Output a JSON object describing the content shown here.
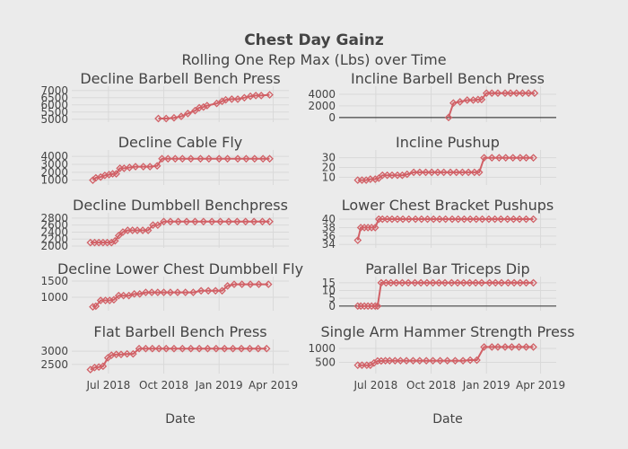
{
  "title": "Chest Day Gainz",
  "subtitle": "Rolling One Rep Max (Lbs) over Time",
  "colors": {
    "background": "#ebebeb",
    "grid": "#d9d9d9",
    "marker": "#d16066",
    "zero_line": "#444444",
    "text": "#444444"
  },
  "chart_data": [
    {
      "type": "line",
      "column": "left",
      "row": 0,
      "title": "Decline Barbell Bench Press",
      "ylim": [
        4800,
        7300
      ],
      "yticks": [
        5000,
        5500,
        6000,
        6500,
        7000
      ],
      "ytick_labels": [
        "5000",
        "5500",
        "6000",
        "6500",
        "7000"
      ],
      "series": [
        {
          "x": [
            "2018-09-22",
            "2018-10-05",
            "2018-10-18",
            "2018-10-30",
            "2018-11-10",
            "2018-11-22",
            "2018-11-29",
            "2018-12-06",
            "2018-12-12",
            "2018-12-28",
            "2019-01-06",
            "2019-01-12",
            "2019-01-22",
            "2019-02-01",
            "2019-02-12",
            "2019-02-22",
            "2019-03-03",
            "2019-03-12",
            "2019-03-26"
          ],
          "y": [
            5050,
            5050,
            5100,
            5200,
            5400,
            5600,
            5800,
            5850,
            5950,
            6100,
            6250,
            6350,
            6400,
            6400,
            6500,
            6600,
            6650,
            6650,
            6700
          ]
        }
      ]
    },
    {
      "type": "line",
      "column": "right",
      "row": 0,
      "title": "Incline Barbell Bench Press",
      "ylim": [
        -800,
        5400
      ],
      "yticks": [
        0,
        2000,
        4000
      ],
      "ytick_labels": [
        "0",
        "2000",
        "4000"
      ],
      "series": [
        {
          "x": [
            "2018-10-30",
            "2018-11-07",
            "2018-11-18",
            "2018-11-30",
            "2018-12-10",
            "2018-12-18",
            "2018-12-24",
            "2019-01-01",
            "2019-01-10",
            "2019-01-20",
            "2019-02-01",
            "2019-02-10",
            "2019-02-20",
            "2019-03-02",
            "2019-03-12",
            "2019-03-22"
          ],
          "y": [
            0,
            2500,
            2700,
            3000,
            3000,
            3100,
            3100,
            4200,
            4200,
            4200,
            4200,
            4200,
            4200,
            4200,
            4200,
            4200
          ]
        }
      ]
    },
    {
      "type": "line",
      "column": "left",
      "row": 1,
      "title": "Decline Cable Fly",
      "ylim": [
        400,
        4800
      ],
      "yticks": [
        1000,
        2000,
        3000,
        4000
      ],
      "ytick_labels": [
        "1000",
        "2000",
        "3000",
        "4000"
      ],
      "series": [
        {
          "x": [
            "2018-06-05",
            "2018-06-10",
            "2018-06-18",
            "2018-06-25",
            "2018-07-02",
            "2018-07-08",
            "2018-07-14",
            "2018-07-20",
            "2018-07-27",
            "2018-08-05",
            "2018-08-15",
            "2018-08-28",
            "2018-09-08",
            "2018-09-20",
            "2018-09-28",
            "2018-10-08",
            "2018-10-20",
            "2018-11-01",
            "2018-11-15",
            "2018-12-01",
            "2018-12-15",
            "2019-01-01",
            "2019-01-15",
            "2019-02-01",
            "2019-02-15",
            "2019-03-01",
            "2019-03-15",
            "2019-03-26"
          ],
          "y": [
            1000,
            1300,
            1400,
            1600,
            1700,
            1800,
            1800,
            2500,
            2500,
            2600,
            2700,
            2700,
            2700,
            2800,
            3700,
            3700,
            3700,
            3700,
            3700,
            3700,
            3700,
            3700,
            3700,
            3700,
            3700,
            3700,
            3700,
            3700
          ]
        }
      ]
    },
    {
      "type": "line",
      "column": "right",
      "row": 1,
      "title": "Incline Pushup",
      "ylim": [
        2,
        38
      ],
      "yticks": [
        10,
        20,
        30
      ],
      "ytick_labels": [
        "10",
        "20",
        "30"
      ],
      "series": [
        {
          "x": [
            "2018-06-01",
            "2018-06-08",
            "2018-06-15",
            "2018-06-22",
            "2018-06-30",
            "2018-07-06",
            "2018-07-12",
            "2018-07-20",
            "2018-07-28",
            "2018-08-06",
            "2018-08-14",
            "2018-08-22",
            "2018-09-02",
            "2018-09-12",
            "2018-09-22",
            "2018-10-02",
            "2018-10-12",
            "2018-10-22",
            "2018-11-02",
            "2018-11-12",
            "2018-11-22",
            "2018-12-02",
            "2018-12-12",
            "2018-12-20",
            "2018-12-28",
            "2019-01-10",
            "2019-01-22",
            "2019-02-02",
            "2019-02-14",
            "2019-02-26",
            "2019-03-08",
            "2019-03-20"
          ],
          "y": [
            7,
            7,
            7,
            8,
            8,
            9,
            12,
            12,
            12,
            12,
            12,
            13,
            15,
            15,
            15,
            15,
            15,
            15,
            15,
            15,
            15,
            15,
            15,
            15,
            30,
            30,
            30,
            30,
            30,
            30,
            30,
            30
          ]
        }
      ]
    },
    {
      "type": "line",
      "column": "left",
      "row": 2,
      "title": "Decline Dumbbell Benchpress",
      "ylim": [
        1950,
        2950
      ],
      "yticks": [
        2000,
        2200,
        2400,
        2600,
        2800
      ],
      "ytick_labels": [
        "2000",
        "2200",
        "2400",
        "2600",
        "2800"
      ],
      "series": [
        {
          "x": [
            "2018-06-01",
            "2018-06-08",
            "2018-06-15",
            "2018-06-22",
            "2018-06-29",
            "2018-07-06",
            "2018-07-12",
            "2018-07-18",
            "2018-07-25",
            "2018-08-02",
            "2018-08-10",
            "2018-08-18",
            "2018-08-27",
            "2018-09-05",
            "2018-09-13",
            "2018-09-21",
            "2018-10-01",
            "2018-10-12",
            "2018-10-25",
            "2018-11-08",
            "2018-11-22",
            "2018-12-06",
            "2018-12-20",
            "2019-01-03",
            "2019-01-17",
            "2019-01-31",
            "2019-02-14",
            "2019-02-28",
            "2019-03-14",
            "2019-03-26"
          ],
          "y": [
            2100,
            2100,
            2100,
            2100,
            2100,
            2100,
            2150,
            2300,
            2400,
            2450,
            2450,
            2450,
            2450,
            2450,
            2600,
            2600,
            2700,
            2700,
            2700,
            2700,
            2700,
            2700,
            2700,
            2700,
            2700,
            2700,
            2700,
            2700,
            2700,
            2700
          ]
        }
      ]
    },
    {
      "type": "line",
      "column": "right",
      "row": 2,
      "title": "Lower Chest Bracket Pushups",
      "ylim": [
        33.2,
        41.5
      ],
      "yticks": [
        34,
        36,
        38,
        40
      ],
      "ytick_labels": [
        "34",
        "36",
        "38",
        "40"
      ],
      "series": [
        {
          "x": [
            "2018-06-01",
            "2018-06-06",
            "2018-06-12",
            "2018-06-18",
            "2018-06-24",
            "2018-06-30",
            "2018-07-06",
            "2018-07-12",
            "2018-07-20",
            "2018-07-28",
            "2018-08-06",
            "2018-08-15",
            "2018-08-25",
            "2018-09-05",
            "2018-09-15",
            "2018-09-25",
            "2018-10-05",
            "2018-10-15",
            "2018-10-25",
            "2018-11-05",
            "2018-11-15",
            "2018-11-25",
            "2018-12-05",
            "2018-12-15",
            "2018-12-25",
            "2019-01-05",
            "2019-01-15",
            "2019-01-25",
            "2019-02-05",
            "2019-02-15",
            "2019-02-25",
            "2019-03-08",
            "2019-03-20"
          ],
          "y": [
            35,
            38,
            38,
            38,
            38,
            38,
            40,
            40,
            40,
            40,
            40,
            40,
            40,
            40,
            40,
            40,
            40,
            40,
            40,
            40,
            40,
            40,
            40,
            40,
            40,
            40,
            40,
            40,
            40,
            40,
            40,
            40,
            40
          ]
        }
      ]
    },
    {
      "type": "line",
      "column": "left",
      "row": 3,
      "title": "Decline Lower Chest Dumbbell Fly",
      "ylim": [
        580,
        1640
      ],
      "yticks": [
        1000,
        1500
      ],
      "ytick_labels": [
        "1000",
        "1500"
      ],
      "series": [
        {
          "x": [
            "2018-06-05",
            "2018-06-10",
            "2018-06-18",
            "2018-06-26",
            "2018-07-03",
            "2018-07-10",
            "2018-07-18",
            "2018-07-26",
            "2018-08-04",
            "2018-08-13",
            "2018-08-22",
            "2018-09-01",
            "2018-09-11",
            "2018-09-21",
            "2018-10-01",
            "2018-10-12",
            "2018-10-24",
            "2018-11-06",
            "2018-11-19",
            "2018-12-02",
            "2018-12-14",
            "2018-12-26",
            "2019-01-06",
            "2019-01-15",
            "2019-01-26",
            "2019-02-08",
            "2019-02-22",
            "2019-03-08",
            "2019-03-24"
          ],
          "y": [
            700,
            720,
            900,
            900,
            900,
            920,
            1050,
            1050,
            1050,
            1100,
            1100,
            1150,
            1150,
            1150,
            1150,
            1150,
            1150,
            1150,
            1150,
            1200,
            1200,
            1200,
            1200,
            1350,
            1400,
            1400,
            1400,
            1400,
            1400
          ]
        }
      ]
    },
    {
      "type": "line",
      "column": "right",
      "row": 3,
      "title": "Parallel Bar Triceps Dip",
      "ylim": [
        -3,
        19
      ],
      "yticks": [
        0,
        5,
        10,
        15
      ],
      "ytick_labels": [
        "0",
        "5",
        "10",
        "15"
      ],
      "series": [
        {
          "x": [
            "2018-06-01",
            "2018-06-06",
            "2018-06-12",
            "2018-06-18",
            "2018-06-24",
            "2018-06-30",
            "2018-07-04",
            "2018-07-10",
            "2018-07-18",
            "2018-07-26",
            "2018-08-04",
            "2018-08-14",
            "2018-08-24",
            "2018-09-04",
            "2018-09-14",
            "2018-09-24",
            "2018-10-04",
            "2018-10-14",
            "2018-10-24",
            "2018-11-04",
            "2018-11-14",
            "2018-11-24",
            "2018-12-04",
            "2018-12-14",
            "2018-12-24",
            "2019-01-06",
            "2019-01-16",
            "2019-01-26",
            "2019-02-06",
            "2019-02-16",
            "2019-02-26",
            "2019-03-08",
            "2019-03-20"
          ],
          "y": [
            0,
            0,
            0,
            0,
            0,
            0,
            0,
            15,
            15,
            15,
            15,
            15,
            15,
            15,
            15,
            15,
            15,
            15,
            15,
            15,
            15,
            15,
            15,
            15,
            15,
            15,
            15,
            15,
            15,
            15,
            15,
            15,
            15
          ]
        }
      ]
    },
    {
      "type": "line",
      "column": "left",
      "row": 4,
      "title": "Flat Barbell Bench Press",
      "ylim": [
        2150,
        3450
      ],
      "yticks": [
        2500,
        3000
      ],
      "ytick_labels": [
        "2500",
        "3000"
      ],
      "series": [
        {
          "x": [
            "2018-06-01",
            "2018-06-08",
            "2018-06-15",
            "2018-06-22",
            "2018-06-30",
            "2018-07-06",
            "2018-07-14",
            "2018-07-22",
            "2018-08-01",
            "2018-08-11",
            "2018-08-21",
            "2018-09-01",
            "2018-09-12",
            "2018-09-23",
            "2018-10-05",
            "2018-10-18",
            "2018-11-01",
            "2018-11-15",
            "2018-11-29",
            "2018-12-13",
            "2018-12-27",
            "2019-01-10",
            "2019-01-24",
            "2019-02-07",
            "2019-02-21",
            "2019-03-07",
            "2019-03-21"
          ],
          "y": [
            2300,
            2380,
            2400,
            2430,
            2750,
            2850,
            2880,
            2880,
            2900,
            2900,
            3100,
            3100,
            3100,
            3100,
            3100,
            3100,
            3100,
            3100,
            3100,
            3100,
            3100,
            3100,
            3100,
            3100,
            3100,
            3100,
            3100
          ]
        }
      ]
    },
    {
      "type": "line",
      "column": "right",
      "row": 4,
      "title": "Single Arm Hammer Strength Press",
      "ylim": [
        100,
        1320
      ],
      "yticks": [
        500,
        1000
      ],
      "ytick_labels": [
        "500",
        "1000"
      ],
      "series": [
        {
          "x": [
            "2018-06-01",
            "2018-06-08",
            "2018-06-16",
            "2018-06-22",
            "2018-06-28",
            "2018-07-04",
            "2018-07-10",
            "2018-07-17",
            "2018-07-24",
            "2018-08-02",
            "2018-08-11",
            "2018-08-21",
            "2018-09-01",
            "2018-09-12",
            "2018-09-23",
            "2018-10-04",
            "2018-10-16",
            "2018-10-28",
            "2018-11-10",
            "2018-11-23",
            "2018-12-05",
            "2018-12-16",
            "2018-12-28",
            "2019-01-10",
            "2019-01-20",
            "2019-02-01",
            "2019-02-12",
            "2019-02-24",
            "2019-03-08",
            "2019-03-20"
          ],
          "y": [
            400,
            400,
            400,
            400,
            480,
            550,
            550,
            560,
            560,
            560,
            560,
            560,
            560,
            560,
            560,
            560,
            560,
            560,
            560,
            560,
            580,
            580,
            1050,
            1050,
            1050,
            1050,
            1050,
            1050,
            1050,
            1050
          ]
        }
      ]
    }
  ],
  "x_axis": {
    "label": "Date",
    "range": [
      "2018-05-01",
      "2019-04-27"
    ],
    "tick_values": [
      "2018-07-01",
      "2018-10-01",
      "2019-01-01",
      "2019-04-01"
    ],
    "tick_labels": [
      "Jul 2018",
      "Oct 2018",
      "Jan 2019",
      "Apr 2019"
    ]
  }
}
